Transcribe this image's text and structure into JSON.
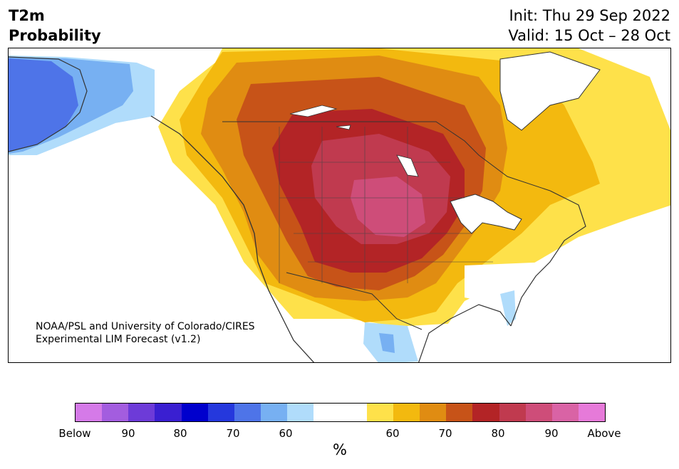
{
  "title": {
    "left_line1": "T2m",
    "left_line2": "Probability",
    "init": "Init: Thu 29 Sep 2022",
    "valid": "Valid: 15 Oct – 28 Oct"
  },
  "credit": {
    "line1": "NOAA/PSL and University of Colorado/CIRES",
    "line2": "Experimental LIM Forecast (v1.2)"
  },
  "colorbar": {
    "units": "%",
    "colors": [
      "#d57ae8",
      "#a35ddf",
      "#6d3bd8",
      "#3a1fd1",
      "#0000cd",
      "#2538dd",
      "#4e74e8",
      "#77b0f2",
      "#b0dcfb",
      "#ffffff",
      "#ffffff",
      "#fee14a",
      "#f3b90f",
      "#e08c12",
      "#c75318",
      "#b32426",
      "#c03a4f",
      "#ce4d79",
      "#d963a5",
      "#e67ad9"
    ],
    "tick_labels": [
      "Below",
      "90",
      "80",
      "70",
      "60",
      "60",
      "70",
      "80",
      "90",
      "Above"
    ]
  },
  "map_colors": {
    "below_60": "#b0dcfb",
    "below_70": "#77b0f2",
    "below_80": "#4e74e8",
    "above_50": "#fee14a",
    "above_60": "#f3b90f",
    "above_65": "#e08c12",
    "above_70": "#c75318",
    "above_75": "#b32426",
    "above_80": "#c03a4f",
    "above_85": "#ce4d79"
  }
}
